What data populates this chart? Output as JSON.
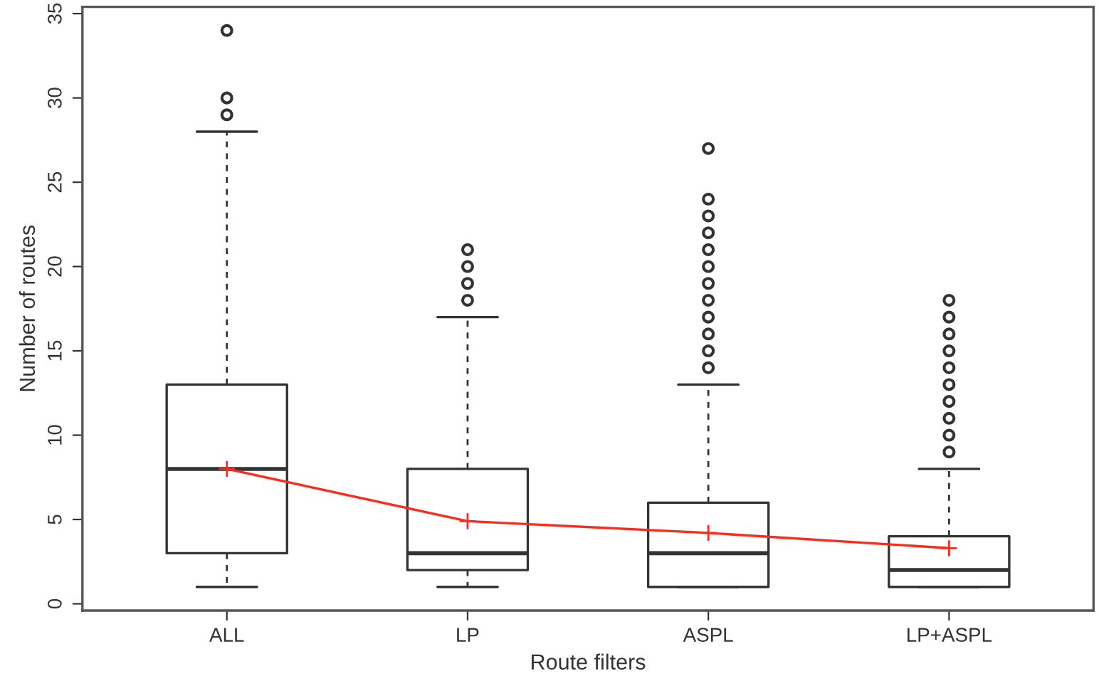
{
  "chart_data": {
    "type": "box",
    "xlabel": "Route filters",
    "ylabel": "Number of routes",
    "categories": [
      "ALL",
      "LP",
      "ASPL",
      "LP+ASPL"
    ],
    "boxes": [
      {
        "low": 1,
        "q1": 3,
        "median": 8,
        "q3": 13,
        "high": 28,
        "outliers": [
          29,
          30,
          34
        ]
      },
      {
        "low": 1,
        "q1": 2,
        "median": 3,
        "q3": 8,
        "high": 17,
        "outliers": [
          18,
          19,
          20,
          21
        ]
      },
      {
        "low": 1,
        "q1": 1,
        "median": 3,
        "q3": 6,
        "high": 13,
        "outliers": [
          14,
          15,
          16,
          17,
          18,
          19,
          20,
          21,
          22,
          23,
          24,
          27
        ]
      },
      {
        "low": 1,
        "q1": 1,
        "median": 2,
        "q3": 4,
        "high": 8,
        "outliers": [
          9,
          10,
          11,
          12,
          13,
          14,
          15,
          16,
          17,
          18
        ]
      }
    ],
    "series": [
      {
        "type": "line",
        "color": "#ff2a1a",
        "values": [
          8.0,
          4.9,
          4.2,
          3.3
        ],
        "marker": "cross",
        "line_style": "solid"
      }
    ],
    "color": "#333333",
    "ylim": [
      -0.4,
      35.4
    ],
    "yticks": [
      0,
      5,
      10,
      15,
      20,
      25,
      30,
      35
    ],
    "grid": false,
    "legend": false
  }
}
